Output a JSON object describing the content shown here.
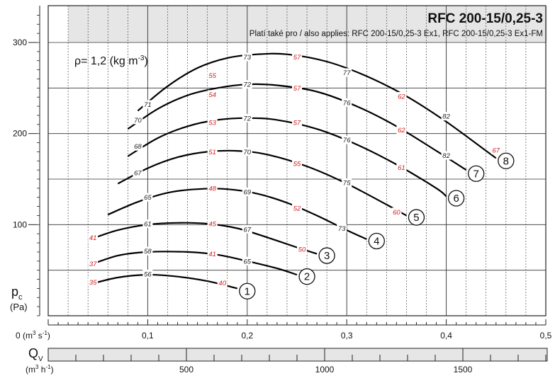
{
  "title": "RFC 200-15/0,25-3",
  "subtitle": "Platí také pro / also applies: RFC 200-15/0,25-3 Ex1, RFC 200-15/0,25-3 Ex1-FM",
  "density_label": "ρ= 1,2 (kg m",
  "density_exp": "-3",
  "density_close": ")",
  "colors": {
    "curve": "#000000",
    "efficiency_label": "#d21e1e",
    "title_band": "#e6e6e6",
    "grid": "#222222"
  },
  "chart_data": {
    "type": "line",
    "y_axis": {
      "label": "p",
      "label_sub": "c",
      "unit": "(Pa)",
      "range": [
        0,
        330
      ],
      "ticks": [
        100,
        200,
        300
      ],
      "tick_labels": [
        "100",
        "200",
        "300"
      ]
    },
    "x_axis": {
      "unit_main": "0  (m",
      "unit_exp": "3",
      "unit_mid": " s",
      "unit_exp2": "-1",
      "unit_close": ")",
      "range": [
        0,
        0.5
      ],
      "ticks": [
        0.1,
        0.2,
        0.3,
        0.4,
        0.5
      ],
      "tick_labels": [
        "0,1",
        "0,2",
        "0,3",
        "0,4",
        "0,5"
      ]
    },
    "x2_axis": {
      "label": "Q",
      "label_sub": "V",
      "unit_main": "(m",
      "unit_exp": "3",
      "unit_mid": " h",
      "unit_exp2": "-1",
      "unit_close": ")",
      "range": [
        0,
        1800
      ],
      "ticks": [
        500,
        1000,
        1500
      ],
      "tick_labels": [
        "500",
        "1000",
        "1500"
      ]
    },
    "series": [
      {
        "id": "1",
        "points": [
          [
            0.04,
            34
          ],
          [
            0.07,
            42
          ],
          [
            0.1,
            45
          ],
          [
            0.13,
            43
          ],
          [
            0.16,
            38
          ],
          [
            0.19,
            30
          ]
        ],
        "labels": [
          {
            "x": 0.045,
            "y": 37,
            "text": "35",
            "color": "red"
          },
          {
            "x": 0.1,
            "y": 46,
            "text": "56",
            "color": "black"
          },
          {
            "x": 0.175,
            "y": 36,
            "text": "40",
            "color": "red"
          }
        ]
      },
      {
        "id": "2",
        "points": [
          [
            0.04,
            55
          ],
          [
            0.07,
            66
          ],
          [
            0.1,
            70
          ],
          [
            0.14,
            70
          ],
          [
            0.17,
            67
          ],
          [
            0.2,
            60
          ],
          [
            0.23,
            52
          ],
          [
            0.25,
            45
          ]
        ],
        "labels": [
          {
            "x": 0.045,
            "y": 57,
            "text": "37",
            "color": "red"
          },
          {
            "x": 0.1,
            "y": 71,
            "text": "58",
            "color": "black"
          },
          {
            "x": 0.165,
            "y": 68,
            "text": "41",
            "color": "red"
          },
          {
            "x": 0.2,
            "y": 60,
            "text": "65",
            "color": "black"
          }
        ]
      },
      {
        "id": "3",
        "points": [
          [
            0.04,
            83
          ],
          [
            0.07,
            94
          ],
          [
            0.1,
            100
          ],
          [
            0.13,
            102
          ],
          [
            0.16,
            101
          ],
          [
            0.19,
            96
          ],
          [
            0.22,
            86
          ],
          [
            0.25,
            75
          ],
          [
            0.27,
            68
          ]
        ],
        "labels": [
          {
            "x": 0.045,
            "y": 86,
            "text": "41",
            "color": "red"
          },
          {
            "x": 0.1,
            "y": 101,
            "text": "61",
            "color": "black"
          },
          {
            "x": 0.165,
            "y": 101,
            "text": "45",
            "color": "red"
          },
          {
            "x": 0.2,
            "y": 95,
            "text": "67",
            "color": "black"
          },
          {
            "x": 0.255,
            "y": 73,
            "text": "50",
            "color": "red"
          }
        ]
      },
      {
        "id": "4",
        "points": [
          [
            0.06,
            111
          ],
          [
            0.09,
            125
          ],
          [
            0.12,
            135
          ],
          [
            0.15,
            139
          ],
          [
            0.18,
            139
          ],
          [
            0.21,
            134
          ],
          [
            0.24,
            124
          ],
          [
            0.27,
            110
          ],
          [
            0.3,
            94
          ],
          [
            0.32,
            84
          ]
        ],
        "labels": [
          {
            "x": 0.1,
            "y": 130,
            "text": "65",
            "color": "black"
          },
          {
            "x": 0.165,
            "y": 140,
            "text": "48",
            "color": "red"
          },
          {
            "x": 0.2,
            "y": 136,
            "text": "69",
            "color": "black"
          },
          {
            "x": 0.25,
            "y": 118,
            "text": "52",
            "color": "red"
          },
          {
            "x": 0.295,
            "y": 96,
            "text": "73",
            "color": "black"
          }
        ]
      },
      {
        "id": "5",
        "points": [
          [
            0.07,
            145
          ],
          [
            0.1,
            162
          ],
          [
            0.13,
            174
          ],
          [
            0.16,
            180
          ],
          [
            0.19,
            181
          ],
          [
            0.22,
            177
          ],
          [
            0.26,
            164
          ],
          [
            0.3,
            145
          ],
          [
            0.34,
            122
          ],
          [
            0.36,
            110
          ]
        ],
        "labels": [
          {
            "x": 0.09,
            "y": 157,
            "text": "67",
            "color": "black"
          },
          {
            "x": 0.165,
            "y": 180,
            "text": "51",
            "color": "red"
          },
          {
            "x": 0.2,
            "y": 180,
            "text": "70",
            "color": "black"
          },
          {
            "x": 0.25,
            "y": 167,
            "text": "55",
            "color": "red"
          },
          {
            "x": 0.3,
            "y": 146,
            "text": "75",
            "color": "black"
          },
          {
            "x": 0.35,
            "y": 114,
            "text": "60",
            "color": "red"
          }
        ]
      },
      {
        "id": "6",
        "points": [
          [
            0.08,
            175
          ],
          [
            0.11,
            195
          ],
          [
            0.14,
            208
          ],
          [
            0.17,
            215
          ],
          [
            0.2,
            217
          ],
          [
            0.23,
            215
          ],
          [
            0.27,
            205
          ],
          [
            0.31,
            188
          ],
          [
            0.35,
            166
          ],
          [
            0.39,
            140
          ],
          [
            0.4,
            131
          ]
        ],
        "labels": [
          {
            "x": 0.09,
            "y": 186,
            "text": "68",
            "color": "black"
          },
          {
            "x": 0.165,
            "y": 212,
            "text": "53",
            "color": "red"
          },
          {
            "x": 0.2,
            "y": 217,
            "text": "72",
            "color": "black"
          },
          {
            "x": 0.25,
            "y": 212,
            "text": "57",
            "color": "red"
          },
          {
            "x": 0.3,
            "y": 193,
            "text": "76",
            "color": "black"
          },
          {
            "x": 0.355,
            "y": 163,
            "text": "61",
            "color": "red"
          }
        ]
      },
      {
        "id": "7",
        "points": [
          [
            0.08,
            205
          ],
          [
            0.11,
            227
          ],
          [
            0.14,
            242
          ],
          [
            0.17,
            250
          ],
          [
            0.2,
            254
          ],
          [
            0.23,
            253
          ],
          [
            0.27,
            246
          ],
          [
            0.31,
            230
          ],
          [
            0.35,
            208
          ],
          [
            0.39,
            181
          ],
          [
            0.42,
            160
          ]
        ],
        "labels": [
          {
            "x": 0.09,
            "y": 215,
            "text": "70",
            "color": "black"
          },
          {
            "x": 0.165,
            "y": 243,
            "text": "54",
            "color": "red"
          },
          {
            "x": 0.2,
            "y": 254,
            "text": "72",
            "color": "black"
          },
          {
            "x": 0.25,
            "y": 250,
            "text": "57",
            "color": "red"
          },
          {
            "x": 0.3,
            "y": 234,
            "text": "76",
            "color": "black"
          },
          {
            "x": 0.355,
            "y": 204,
            "text": "62",
            "color": "red"
          },
          {
            "x": 0.4,
            "y": 176,
            "text": "82",
            "color": "black"
          }
        ]
      },
      {
        "id": "8",
        "points": [
          [
            0.09,
            225
          ],
          [
            0.12,
            252
          ],
          [
            0.15,
            272
          ],
          [
            0.18,
            283
          ],
          [
            0.21,
            287
          ],
          [
            0.24,
            287
          ],
          [
            0.28,
            279
          ],
          [
            0.32,
            263
          ],
          [
            0.36,
            241
          ],
          [
            0.4,
            213
          ],
          [
            0.44,
            181
          ],
          [
            0.45,
            173
          ]
        ],
        "labels": [
          {
            "x": 0.1,
            "y": 232,
            "text": "71",
            "color": "black"
          },
          {
            "x": 0.165,
            "y": 264,
            "text": "55",
            "color": "red"
          },
          {
            "x": 0.2,
            "y": 284,
            "text": "73",
            "color": "black"
          },
          {
            "x": 0.25,
            "y": 284,
            "text": "57",
            "color": "red"
          },
          {
            "x": 0.3,
            "y": 267,
            "text": "77",
            "color": "black"
          },
          {
            "x": 0.355,
            "y": 241,
            "text": "62",
            "color": "red"
          },
          {
            "x": 0.4,
            "y": 219,
            "text": "82",
            "color": "black"
          },
          {
            "x": 0.45,
            "y": 182,
            "text": "67",
            "color": "red"
          }
        ]
      }
    ],
    "curve_markers": [
      {
        "id": "1",
        "x": 0.2,
        "y": 27
      },
      {
        "id": "2",
        "x": 0.26,
        "y": 43
      },
      {
        "id": "3",
        "x": 0.28,
        "y": 66
      },
      {
        "id": "4",
        "x": 0.33,
        "y": 82
      },
      {
        "id": "5",
        "x": 0.37,
        "y": 108
      },
      {
        "id": "6",
        "x": 0.41,
        "y": 129
      },
      {
        "id": "7",
        "x": 0.43,
        "y": 156
      },
      {
        "id": "8",
        "x": 0.46,
        "y": 170
      }
    ]
  }
}
